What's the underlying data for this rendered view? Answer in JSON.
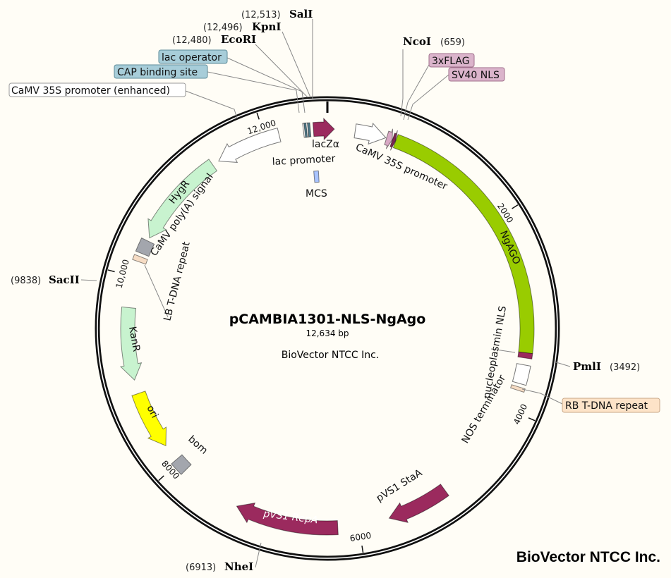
{
  "plasmid": {
    "name": "pCAMBIA1301-NLS-NgAgo",
    "length_bp": 12634,
    "length_label": "12,634 bp",
    "center_credit": "BioVector NTCC Inc.",
    "watermark": "BioVector NTCC Inc."
  },
  "ticks": [
    {
      "bp": 2000,
      "label": "2000"
    },
    {
      "bp": 4000,
      "label": "4000"
    },
    {
      "bp": 6000,
      "label": "6000"
    },
    {
      "bp": 8000,
      "label": "8000"
    },
    {
      "bp": 10000,
      "label": "10,000"
    },
    {
      "bp": 12000,
      "label": "12,000"
    }
  ],
  "sites": [
    {
      "name": "SalI",
      "position": "(12,513)"
    },
    {
      "name": "KpnI",
      "position": "(12,496)"
    },
    {
      "name": "EcoRI",
      "position": "(12,480)"
    },
    {
      "name": "NcoI",
      "position": "(659)"
    },
    {
      "name": "PmlI",
      "position": "(3492)"
    },
    {
      "name": "SacII",
      "position": "(9838)"
    },
    {
      "name": "NheI",
      "position": "(6913)"
    }
  ],
  "features": [
    {
      "label": "lacZα",
      "start": 12493,
      "end": 70,
      "dir": "cw",
      "color": "#9b2a5e"
    },
    {
      "label": "lac promoter",
      "start": 12392,
      "end": 12440,
      "dir": "none",
      "color": "#ffffff"
    },
    {
      "label": "lac operator",
      "start": 12440,
      "end": 12462,
      "dir": "none",
      "color": "#4f7a8a"
    },
    {
      "label": "CAP binding site",
      "start": 12405,
      "end": 12425,
      "dir": "none",
      "color": "#4f7a8a"
    },
    {
      "label": "CaMV 35S promoter (enhanced)",
      "start": 11477,
      "end": 12143,
      "dir": "ccw",
      "color": "#ffffff"
    },
    {
      "label": "HygR",
      "start": 10423,
      "end": 11406,
      "dir": "ccw",
      "color": "#c8f3cf"
    },
    {
      "label": "CaMV poly(A) signal",
      "start": 10248,
      "end": 10388,
      "dir": "none",
      "color": "#a3a6ad"
    },
    {
      "label": "LB T-DNA repeat",
      "start": 10160,
      "end": 10213,
      "dir": "none",
      "color": "#f6dcc4"
    },
    {
      "label": "KanR",
      "start": 8950,
      "end": 9686,
      "dir": "ccw",
      "color": "#c8f3cf"
    },
    {
      "label": "ori",
      "start": 8212,
      "end": 8809,
      "dir": "ccw",
      "color": "#ffff00"
    },
    {
      "label": "bom",
      "start": 7896,
      "end": 8037,
      "dir": "none",
      "color": "#a3a6ad"
    },
    {
      "label": "pVS1 RepA",
      "start": 6212,
      "end": 7265,
      "dir": "cw",
      "color": "#9b2a5e"
    },
    {
      "label": "pVS1 StaA",
      "start": 5054,
      "end": 5685,
      "dir": "cw",
      "color": "#9b2a5e"
    },
    {
      "label": "CaMV 35S promoter",
      "start": 281,
      "end": 597,
      "dir": "cw",
      "color": "#ffffff"
    },
    {
      "label": "3xFLAG",
      "start": 605,
      "end": 665,
      "dir": "cw",
      "color": "#d8a8c4"
    },
    {
      "label": "SV40 NLS",
      "start": 667,
      "end": 700,
      "dir": "cw",
      "color": "#7a2550"
    },
    {
      "label": "NgAGO",
      "start": 702,
      "end": 3404,
      "dir": "none",
      "color": "#99cc00"
    },
    {
      "label": "nucleoplasmin NLS",
      "start": 3404,
      "end": 3457,
      "dir": "none",
      "color": "#9b2a5e"
    },
    {
      "label": "NOS terminator",
      "start": 3527,
      "end": 3720,
      "dir": "none",
      "color": "#ffffff"
    },
    {
      "label": "RB T-DNA repeat",
      "start": 3755,
      "end": 3790,
      "dir": "none",
      "color": "#f6dcc4"
    },
    {
      "label": "MCS",
      "start": 12460,
      "end": 12520,
      "dir": "none",
      "color": "#a9c4ff",
      "inner": true
    }
  ],
  "colors": {
    "background": "#fffdf6",
    "box_blue": "#a7cdd9",
    "box_pink": "#dbb4cb",
    "box_peach": "#fde3c8"
  }
}
